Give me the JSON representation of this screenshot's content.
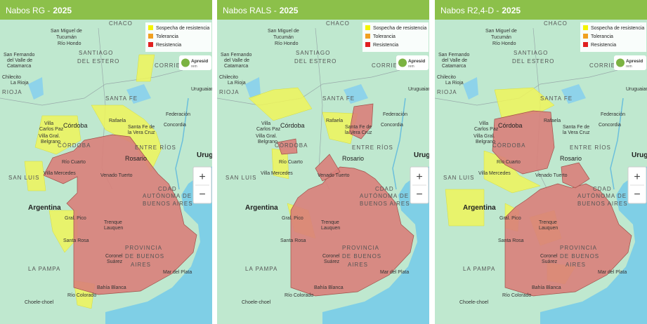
{
  "panels": [
    {
      "title": "Nabos RG -",
      "year": "2025"
    },
    {
      "title": "Nabos RALS -",
      "year": "2025"
    },
    {
      "title": "Nabos R2,4-D -",
      "year": "2025"
    }
  ],
  "legend": [
    {
      "label": "Sospecha de resistencia",
      "color": "#f4f400"
    },
    {
      "label": "Tolerancia",
      "color": "#f0a020"
    },
    {
      "label": "Resistencia",
      "color": "#e02020"
    }
  ],
  "logo": {
    "name": "Apresid",
    "sub": "rem"
  },
  "zoom": [
    "+",
    "−"
  ],
  "map_labels": [
    "San Miguel de",
    "Tucumán",
    "CHACO",
    "SANTIAGO",
    "DEL ESTERO",
    "Río Hondo",
    "San Fernando",
    "del Valle de",
    "Catamarca",
    "Chilecito",
    "La Rioja",
    "RIOJA",
    "CORRIENTES",
    "SANTA FE",
    "Federación",
    "Concordia",
    "Rafaela",
    "Santa Fe de",
    "la Vera Cruz",
    "Villa",
    "Carlos Paz",
    "Córdoba",
    "Villa Gral.",
    "Belgrano",
    "CÓRDOBA",
    "ENTRE RÍOS",
    "Rosario",
    "Río Cuarto",
    "Villa Mercedes",
    "SAN LUIS",
    "Venado Tuerto",
    "CDAD",
    "AUTÓNOMA DE",
    "BUENOS AIRES",
    "Argentina",
    "Gral. Pico",
    "Trenque",
    "Lauquen",
    "Santa Rosa",
    "PROVINCIA",
    "DE BUENOS",
    "AIRES",
    "Coronel",
    "Suárez",
    "LA PAMPA",
    "Mar del Plata",
    "Bahía Blanca",
    "Río Colorado",
    "Choele-choel",
    "Uruguaiana",
    "Uruguay"
  ]
}
